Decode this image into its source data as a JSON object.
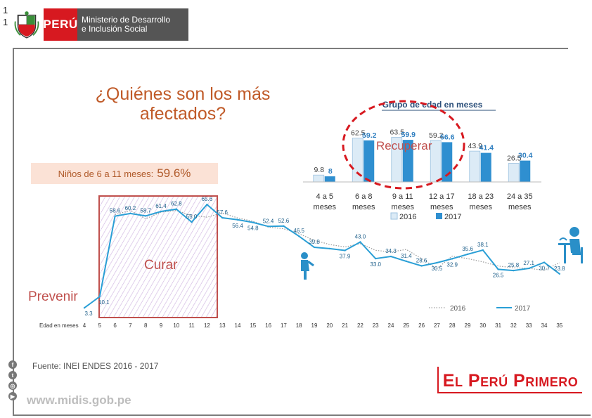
{
  "slide_number": "1\n1",
  "header": {
    "logo_country": "PERÚ",
    "logo_ministry_line1": "Ministerio de Desarrollo",
    "logo_ministry_line2": "e Inclusión Social"
  },
  "main_title": "¿Quiénes son los más afectados?",
  "callout": {
    "label": "Niños de 6 a 11 meses:",
    "value": "59.6%"
  },
  "labels": {
    "curar": "Curar",
    "prevenir": "Prevenir",
    "recuperar": "Recuperar"
  },
  "footer": {
    "source": "Fuente: INEI ENDES 2016 - 2017",
    "website": "www.midis.gob.pe",
    "brand": "El Perú Primero"
  },
  "colors": {
    "red": "#d71920",
    "accent": "#c0504d",
    "line2017": "#2a9fd6",
    "bar2016": "#dcebf6",
    "bar2017": "#2f8fd0"
  },
  "chart_data": [
    {
      "type": "line",
      "xlabel": "Edad en meses",
      "x": [
        4,
        5,
        6,
        7,
        8,
        9,
        10,
        11,
        12,
        13,
        14,
        15,
        16,
        17,
        18,
        19,
        20,
        21,
        22,
        23,
        24,
        25,
        26,
        27,
        28,
        29,
        30,
        31,
        32,
        33,
        34,
        35
      ],
      "series": [
        {
          "name": "2016",
          "style": "dotted",
          "values": [
            null,
            null,
            59.5,
            62.0,
            57.0,
            61.0,
            62.0,
            59.0,
            58.0,
            60.5,
            57.5,
            55.5,
            52.0,
            51.0,
            48.0,
            44.0,
            41.5,
            40.0,
            42.0,
            38.0,
            37.0,
            38.5,
            33.0,
            27.0,
            34.5,
            33.0,
            31.0,
            28.5,
            27.5,
            27.1,
            26.0,
            30.5
          ]
        },
        {
          "name": "2017",
          "style": "solid",
          "values": [
            3.3,
            10.1,
            58.6,
            60.2,
            58.7,
            61.4,
            62.8,
            55.0,
            65.6,
            57.6,
            56.4,
            54.8,
            52.4,
            52.6,
            46.5,
            39.8,
            39.0,
            37.9,
            43.0,
            33.0,
            34.3,
            31.4,
            28.6,
            30.5,
            32.9,
            35.6,
            38.1,
            26.5,
            25.8,
            27.1,
            30.7,
            23.8
          ]
        }
      ],
      "data_labels_2017": [
        "3.3",
        "10.1",
        "58.6",
        "60.2",
        "58.7",
        "61.4",
        "62.8",
        "55.0",
        "65.6",
        "57.6",
        "56.4",
        "54.8",
        "52.4",
        "52.6",
        "46.5",
        "39.8",
        "",
        "37.9",
        "43.0",
        "33.0",
        "34.3",
        "31.4",
        "28.6",
        "30.5",
        "32.9",
        "35.6",
        "38.1",
        "26.5",
        "25.8",
        "27.1",
        "30.7",
        "23.8"
      ],
      "ylim": [
        0,
        72
      ],
      "legend": [
        "2016",
        "2017"
      ]
    },
    {
      "type": "bar",
      "title": "Grupo de edad en meses",
      "categories": [
        "4 a 5 meses",
        "6 a 8 meses",
        "9 a 11 meses",
        "12 a 17 meses",
        "18 a 23 meses",
        "24 a 35 meses"
      ],
      "series": [
        {
          "name": "2016",
          "values": [
            9.8,
            62.5,
            63.5,
            59.2,
            43.9,
            26.5
          ]
        },
        {
          "name": "2017",
          "values": [
            8.0,
            59.2,
            59.9,
            56.6,
            41.4,
            30.4
          ]
        }
      ],
      "ylim": [
        0,
        70
      ]
    }
  ]
}
